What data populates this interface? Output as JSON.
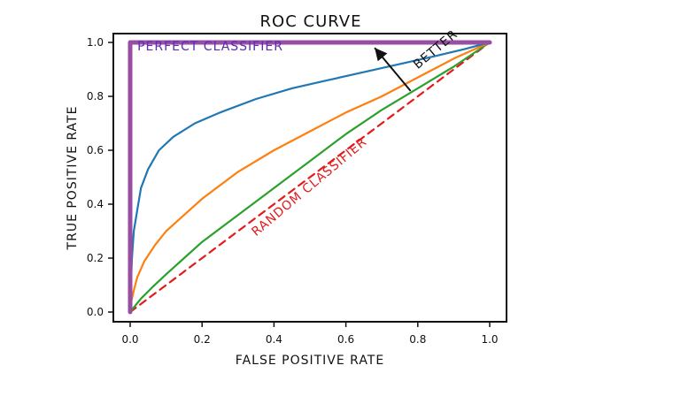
{
  "chart_data": {
    "type": "line",
    "title": "ROC CURVE",
    "xlabel": "FALSE POSITIVE RATE",
    "ylabel": "TRUE POSITIVE RATE",
    "xlim": [
      0.0,
      1.0
    ],
    "ylim": [
      0.0,
      1.0
    ],
    "xticks": [
      "0.0",
      "0.2",
      "0.4",
      "0.6",
      "0.8",
      "1.0"
    ],
    "yticks": [
      "0.0",
      "0.2",
      "0.4",
      "0.6",
      "0.8",
      "1.0"
    ],
    "grid": false,
    "legend": null,
    "series": [
      {
        "name": "Perfect classifier",
        "color": "#984ea3",
        "style": "solid",
        "x": [
          0.0,
          0.0,
          1.0
        ],
        "y": [
          0.0,
          1.0,
          1.0
        ]
      },
      {
        "color": "#1f77b4",
        "style": "solid",
        "x": [
          0.0,
          0.005,
          0.01,
          0.02,
          0.03,
          0.05,
          0.08,
          0.12,
          0.18,
          0.25,
          0.35,
          0.45,
          0.55,
          0.65,
          0.75,
          0.85,
          0.93,
          1.0
        ],
        "y": [
          0.02,
          0.2,
          0.3,
          0.38,
          0.46,
          0.53,
          0.6,
          0.65,
          0.7,
          0.74,
          0.79,
          0.83,
          0.86,
          0.89,
          0.92,
          0.95,
          0.975,
          1.0
        ]
      },
      {
        "color": "#ff7f0e",
        "style": "solid",
        "x": [
          0.0,
          0.01,
          0.02,
          0.04,
          0.07,
          0.1,
          0.15,
          0.2,
          0.3,
          0.4,
          0.5,
          0.6,
          0.7,
          0.8,
          0.9,
          1.0
        ],
        "y": [
          0.02,
          0.08,
          0.13,
          0.19,
          0.25,
          0.3,
          0.36,
          0.42,
          0.52,
          0.6,
          0.67,
          0.74,
          0.8,
          0.87,
          0.94,
          1.0
        ]
      },
      {
        "color": "#2ca02c",
        "style": "solid",
        "x": [
          0.0,
          0.03,
          0.06,
          0.1,
          0.15,
          0.2,
          0.3,
          0.4,
          0.5,
          0.6,
          0.7,
          0.8,
          0.9,
          1.0
        ],
        "y": [
          0.0,
          0.05,
          0.09,
          0.14,
          0.2,
          0.26,
          0.36,
          0.46,
          0.56,
          0.66,
          0.75,
          0.83,
          0.91,
          1.0
        ]
      },
      {
        "name": "Random classifier",
        "color": "#e41a1c",
        "style": "dashed",
        "x": [
          0.0,
          1.0
        ],
        "y": [
          0.0,
          1.0
        ]
      }
    ],
    "annotations": [
      {
        "text": "PERFECT CLASSIFIER",
        "color": "#5b2bb5",
        "at": [
          0.02,
          0.97
        ]
      },
      {
        "text": "RANDOM CLASSIFIER",
        "color": "#e41a1c",
        "at": [
          0.35,
          0.28
        ],
        "rotation": -40
      },
      {
        "text": "BETTER",
        "color": "#111111",
        "at": [
          0.8,
          0.9
        ],
        "rotation": -40
      }
    ],
    "arrow": {
      "from": [
        0.78,
        0.82
      ],
      "to": [
        0.68,
        0.98
      ],
      "color": "#111111"
    }
  }
}
